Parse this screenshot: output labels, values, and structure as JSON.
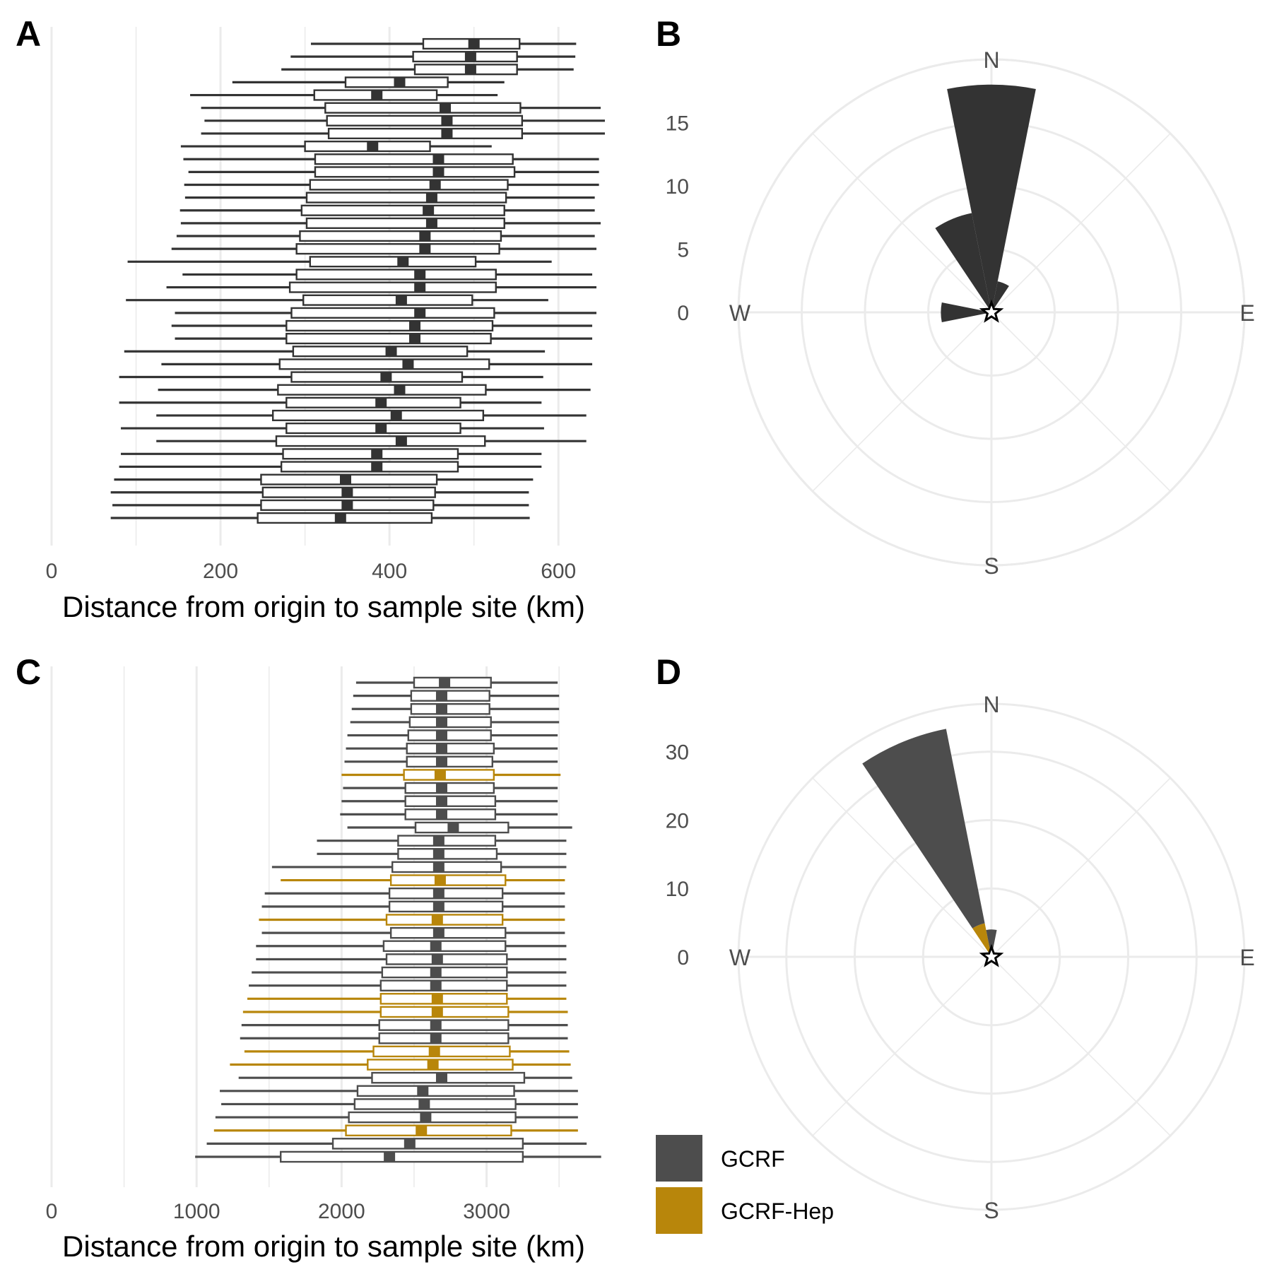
{
  "colors": {
    "box_default": "#333333",
    "GCRF": "#4d4d4d",
    "GCRF-Hep": "#b8860b",
    "grid": "#ebebeb"
  },
  "chart_data": [
    {
      "panel": "A",
      "type": "boxplot",
      "orientation": "horizontal",
      "xlabel": "Distance from origin to sample site (km)",
      "xlim": [
        0,
        650
      ],
      "xticks": [
        0,
        200,
        400,
        600
      ],
      "boxes": [
        [
          307,
          440,
          500,
          554,
          621
        ],
        [
          283,
          428,
          496,
          551,
          620
        ],
        [
          272,
          430,
          496,
          551,
          618
        ],
        [
          214,
          348,
          412,
          469,
          536
        ],
        [
          164,
          311,
          385,
          456,
          528
        ],
        [
          177,
          324,
          466,
          555,
          650
        ],
        [
          181,
          326,
          468,
          557,
          655
        ],
        [
          177,
          328,
          468,
          557,
          655
        ],
        [
          153,
          300,
          380,
          448,
          521
        ],
        [
          156,
          312,
          458,
          546,
          648
        ],
        [
          162,
          312,
          458,
          548,
          648
        ],
        [
          157,
          306,
          454,
          540,
          648
        ],
        [
          158,
          302,
          450,
          538,
          643
        ],
        [
          152,
          296,
          446,
          536,
          643
        ],
        [
          153,
          302,
          450,
          536,
          650
        ],
        [
          148,
          294,
          442,
          532,
          643
        ],
        [
          142,
          290,
          442,
          530,
          645
        ],
        [
          90,
          306,
          416,
          502,
          592
        ],
        [
          155,
          290,
          436,
          526,
          640
        ],
        [
          136,
          282,
          436,
          526,
          645
        ],
        [
          88,
          298,
          414,
          498,
          588
        ],
        [
          146,
          284,
          436,
          524,
          645
        ],
        [
          142,
          278,
          430,
          522,
          640
        ],
        [
          146,
          278,
          430,
          520,
          640
        ],
        [
          86,
          286,
          402,
          492,
          584
        ],
        [
          130,
          270,
          422,
          518,
          640
        ],
        [
          80,
          284,
          396,
          486,
          582
        ],
        [
          126,
          268,
          412,
          514,
          638
        ],
        [
          80,
          278,
          390,
          484,
          580
        ],
        [
          124,
          262,
          408,
          511,
          633
        ],
        [
          82,
          278,
          390,
          484,
          583
        ],
        [
          124,
          266,
          414,
          513,
          633
        ],
        [
          82,
          274,
          385,
          481,
          580
        ],
        [
          80,
          272,
          385,
          481,
          580
        ],
        [
          74,
          248,
          348,
          456,
          570
        ],
        [
          70,
          250,
          350,
          454,
          565
        ],
        [
          72,
          248,
          350,
          452,
          565
        ],
        [
          70,
          244,
          342,
          450,
          566
        ]
      ]
    },
    {
      "panel": "B",
      "type": "polar-bar",
      "rlim": [
        0,
        20
      ],
      "rticks": [
        0,
        5,
        10,
        15
      ],
      "compass": [
        "N",
        "E",
        "S",
        "W"
      ],
      "sectors": [
        {
          "start": -11.25,
          "end": 11.25,
          "value": 18
        },
        {
          "start": -33.75,
          "end": -11.25,
          "value": 8
        },
        {
          "start": 11.25,
          "end": 33.75,
          "value": 2.5
        },
        {
          "start": -101.25,
          "end": -78.75,
          "value": 4
        }
      ]
    },
    {
      "panel": "C",
      "type": "boxplot",
      "orientation": "horizontal",
      "xlabel": "Distance from origin to sample site (km)",
      "xlim": [
        0,
        3850
      ],
      "xticks": [
        0,
        1000,
        2000,
        3000
      ],
      "boxes": [
        {
          "group": "GCRF",
          "stats": [
            2100,
            2500,
            2710,
            3030,
            3490
          ]
        },
        {
          "group": "GCRF",
          "stats": [
            2080,
            2480,
            2690,
            3020,
            3500
          ]
        },
        {
          "group": "GCRF",
          "stats": [
            2070,
            2480,
            2690,
            3020,
            3500
          ]
        },
        {
          "group": "GCRF",
          "stats": [
            2060,
            2470,
            2690,
            3030,
            3500
          ]
        },
        {
          "group": "GCRF",
          "stats": [
            2040,
            2460,
            2690,
            3030,
            3490
          ]
        },
        {
          "group": "GCRF",
          "stats": [
            2030,
            2450,
            2690,
            3050,
            3490
          ]
        },
        {
          "group": "GCRF",
          "stats": [
            2020,
            2450,
            2690,
            3040,
            3490
          ]
        },
        {
          "group": "GCRF-Hep",
          "stats": [
            2000,
            2430,
            2680,
            3050,
            3510
          ]
        },
        {
          "group": "GCRF",
          "stats": [
            2010,
            2440,
            2690,
            3050,
            3490
          ]
        },
        {
          "group": "GCRF",
          "stats": [
            2000,
            2440,
            2690,
            3060,
            3490
          ]
        },
        {
          "group": "GCRF",
          "stats": [
            1990,
            2440,
            2690,
            3060,
            3490
          ]
        },
        {
          "group": "GCRF",
          "stats": [
            2040,
            2510,
            2770,
            3150,
            3590
          ]
        },
        {
          "group": "GCRF",
          "stats": [
            1830,
            2390,
            2670,
            3060,
            3550
          ]
        },
        {
          "group": "GCRF",
          "stats": [
            1830,
            2390,
            2670,
            3070,
            3550
          ]
        },
        {
          "group": "GCRF",
          "stats": [
            1520,
            2350,
            2670,
            3100,
            3550
          ]
        },
        {
          "group": "GCRF-Hep",
          "stats": [
            1580,
            2340,
            2680,
            3130,
            3540
          ]
        },
        {
          "group": "GCRF",
          "stats": [
            1470,
            2330,
            2670,
            3110,
            3540
          ]
        },
        {
          "group": "GCRF",
          "stats": [
            1450,
            2330,
            2670,
            3110,
            3540
          ]
        },
        {
          "group": "GCRF-Hep",
          "stats": [
            1430,
            2310,
            2660,
            3110,
            3540
          ]
        },
        {
          "group": "GCRF",
          "stats": [
            1450,
            2340,
            2670,
            3130,
            3540
          ]
        },
        {
          "group": "GCRF",
          "stats": [
            1410,
            2290,
            2650,
            3130,
            3550
          ]
        },
        {
          "group": "GCRF",
          "stats": [
            1410,
            2310,
            2660,
            3140,
            3550
          ]
        },
        {
          "group": "GCRF",
          "stats": [
            1380,
            2280,
            2650,
            3140,
            3550
          ]
        },
        {
          "group": "GCRF",
          "stats": [
            1360,
            2270,
            2650,
            3140,
            3550
          ]
        },
        {
          "group": "GCRF-Hep",
          "stats": [
            1350,
            2270,
            2660,
            3140,
            3550
          ]
        },
        {
          "group": "GCRF-Hep",
          "stats": [
            1320,
            2270,
            2660,
            3150,
            3560
          ]
        },
        {
          "group": "GCRF",
          "stats": [
            1310,
            2260,
            2650,
            3150,
            3560
          ]
        },
        {
          "group": "GCRF",
          "stats": [
            1300,
            2260,
            2650,
            3150,
            3560
          ]
        },
        {
          "group": "GCRF-Hep",
          "stats": [
            1330,
            2220,
            2640,
            3160,
            3570
          ]
        },
        {
          "group": "GCRF-Hep",
          "stats": [
            1230,
            2180,
            2630,
            3180,
            3580
          ]
        },
        {
          "group": "GCRF",
          "stats": [
            1290,
            2210,
            2690,
            3260,
            3590
          ]
        },
        {
          "group": "GCRF",
          "stats": [
            1160,
            2110,
            2560,
            3190,
            3630
          ]
        },
        {
          "group": "GCRF",
          "stats": [
            1170,
            2090,
            2570,
            3200,
            3630
          ]
        },
        {
          "group": "GCRF",
          "stats": [
            1130,
            2050,
            2580,
            3200,
            3630
          ]
        },
        {
          "group": "GCRF-Hep",
          "stats": [
            1120,
            2030,
            2550,
            3170,
            3630
          ]
        },
        {
          "group": "GCRF",
          "stats": [
            1070,
            1940,
            2470,
            3250,
            3690
          ]
        },
        {
          "group": "GCRF",
          "stats": [
            990,
            1580,
            2330,
            3250,
            3790
          ]
        }
      ]
    },
    {
      "panel": "D",
      "type": "polar-bar",
      "stacked": true,
      "rlim": [
        0,
        37
      ],
      "rticks": [
        0,
        10,
        20,
        30
      ],
      "compass": [
        "N",
        "E",
        "S",
        "W"
      ],
      "sectors": [
        {
          "start": -33.75,
          "end": -11.25,
          "GCRF": 29,
          "GCRF-Hep": 5
        },
        {
          "start": -11.25,
          "end": 11.25,
          "GCRF": 4,
          "GCRF-Hep": 0
        }
      ],
      "legend": {
        "position": "bottom-left",
        "entries": [
          "GCRF",
          "GCRF-Hep"
        ]
      }
    }
  ]
}
